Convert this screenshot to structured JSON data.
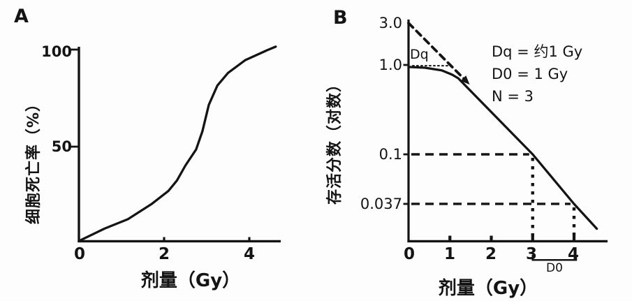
{
  "chart_data": [
    {
      "panel_label": "A",
      "type": "line",
      "title": "",
      "xlabel": "剂量（Gy）",
      "ylabel": "细胞死亡率（%）",
      "xlim": [
        0,
        4.8
      ],
      "ylim": [
        0,
        105
      ],
      "grid": false,
      "legend": false,
      "xticks": [
        {
          "value": 0,
          "label": "0"
        },
        {
          "value": 2,
          "label": "2"
        },
        {
          "value": 4,
          "label": "4"
        }
      ],
      "yticks": [
        {
          "value": 100,
          "label": "100"
        },
        {
          "value": 50,
          "label": "50"
        }
      ],
      "series": [
        {
          "name": "cell-death-rate-sigmoid",
          "style": "solid",
          "x": [
            0.05,
            0.6,
            1.15,
            1.7,
            2.1,
            2.3,
            2.5,
            2.75,
            2.9,
            3.05,
            3.25,
            3.5,
            3.9,
            4.4,
            4.62
          ],
          "y": [
            0.5,
            6.5,
            11.5,
            19.5,
            26.5,
            32,
            40,
            48.5,
            58,
            71.5,
            81.5,
            88,
            94.5,
            99.5,
            101.5
          ]
        }
      ]
    },
    {
      "panel_label": "B",
      "type": "line",
      "yscale": "log",
      "xlabel": "剂量（Gy）",
      "ylabel": "存活分数（对数）",
      "xlim": [
        0,
        4.8
      ],
      "ylim": [
        0.02,
        3.5
      ],
      "grid": false,
      "legend": false,
      "xticks": [
        {
          "value": 0,
          "label": "0"
        },
        {
          "value": 1,
          "label": "1"
        },
        {
          "value": 2,
          "label": "2"
        },
        {
          "value": 3,
          "label": "3"
        },
        {
          "value": 4,
          "label": "4"
        }
      ],
      "yticks": [
        {
          "value": 3.0,
          "label": "3.0",
          "tick_mark": false
        },
        {
          "value": 1.0,
          "label": "1.0",
          "tick_mark": true
        },
        {
          "value": 0.1,
          "label": "0.1",
          "tick_mark": true
        },
        {
          "value": 0.037,
          "label": "0.037",
          "tick_mark": true
        }
      ],
      "series": [
        {
          "name": "survival-fraction-curve",
          "style": "solid",
          "x": [
            0,
            0.4,
            0.8,
            1.05,
            1.2,
            3,
            4,
            4.55
          ],
          "y": [
            0.95,
            0.93,
            0.87,
            0.78,
            0.71,
            0.1,
            0.037,
            0.0225
          ]
        },
        {
          "name": "extrapolation-n-line",
          "style": "dashed-arrow",
          "x": [
            0,
            1.4
          ],
          "y": [
            3.0,
            0.655
          ]
        },
        {
          "name": "dq-dotted-line",
          "style": "dotted",
          "x": [
            0.1,
            1.02
          ],
          "y": [
            0.98,
            0.98
          ]
        }
      ],
      "reference_lines": [
        {
          "name": "sf-0.1-at-3gy",
          "y": 0.1,
          "x": 3
        },
        {
          "name": "sf-0.037-at-4gy",
          "y": 0.037,
          "x": 4
        }
      ],
      "annotations": [
        {
          "text": "Dq = 约1 Gy"
        },
        {
          "text": "D0 = 1 Gy"
        },
        {
          "text": "N = 3"
        }
      ],
      "inline_labels": [
        {
          "text": "Dq"
        },
        {
          "text": "D0"
        }
      ],
      "d0_bracket": {
        "from_x": 3,
        "to_x": 4
      }
    }
  ]
}
